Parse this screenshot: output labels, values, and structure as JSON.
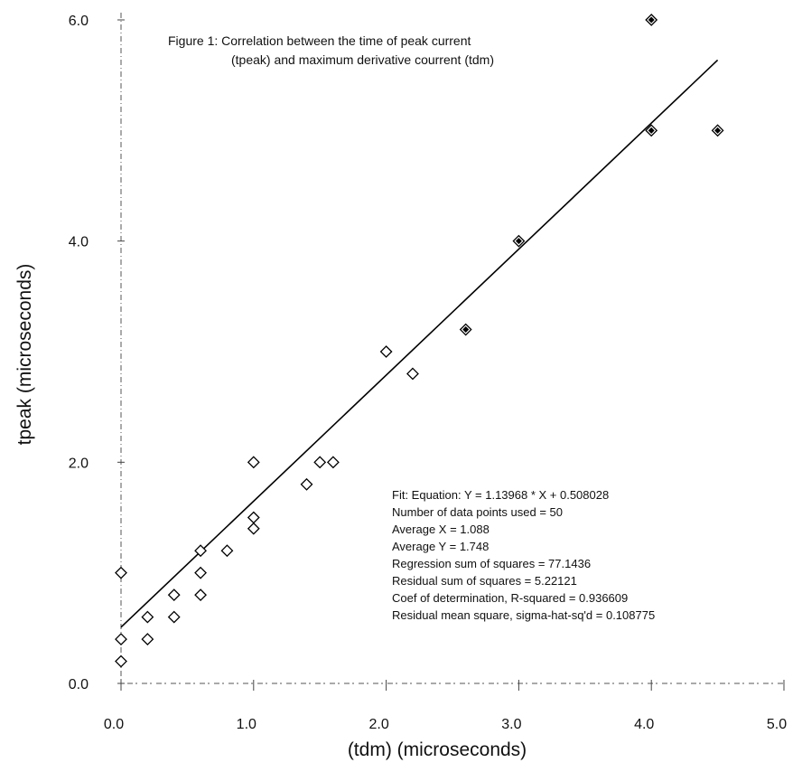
{
  "chart_data": {
    "type": "scatter",
    "title_lines": [
      "Figure 1: Correlation between the time of peak current",
      "(tpeak) and maximum derivative courrent (tdm)"
    ],
    "xlabel": "(tdm) (microseconds)",
    "ylabel": "tpeak (microseconds)",
    "xlim": [
      0,
      5
    ],
    "ylim": [
      0,
      6
    ],
    "x_ticks": [
      "0.0",
      "1.0",
      "2.0",
      "3.0",
      "4.0",
      "5.0"
    ],
    "y_ticks": [
      "0.0",
      "2.0",
      "4.0",
      "6.0"
    ],
    "points_open": [
      {
        "x": 0.0,
        "y": 0.2
      },
      {
        "x": 0.0,
        "y": 0.4
      },
      {
        "x": 0.0,
        "y": 1.0
      },
      {
        "x": 0.2,
        "y": 0.4
      },
      {
        "x": 0.2,
        "y": 0.6
      },
      {
        "x": 0.4,
        "y": 0.6
      },
      {
        "x": 0.4,
        "y": 0.8
      },
      {
        "x": 0.6,
        "y": 0.8
      },
      {
        "x": 0.6,
        "y": 1.0
      },
      {
        "x": 0.6,
        "y": 1.2
      },
      {
        "x": 0.8,
        "y": 1.2
      },
      {
        "x": 1.0,
        "y": 1.4
      },
      {
        "x": 1.0,
        "y": 1.5
      },
      {
        "x": 1.0,
        "y": 2.0
      },
      {
        "x": 1.4,
        "y": 1.8
      },
      {
        "x": 1.5,
        "y": 2.0
      },
      {
        "x": 1.6,
        "y": 2.0
      },
      {
        "x": 2.0,
        "y": 3.0
      },
      {
        "x": 2.2,
        "y": 2.8
      }
    ],
    "points_filled": [
      {
        "x": 2.6,
        "y": 3.2
      },
      {
        "x": 3.0,
        "y": 4.0
      },
      {
        "x": 4.0,
        "y": 5.0
      },
      {
        "x": 4.0,
        "y": 6.0
      },
      {
        "x": 4.5,
        "y": 5.0
      }
    ],
    "fit_line": {
      "slope": 1.13968,
      "intercept": 0.508028,
      "x_range": [
        0,
        4.5
      ]
    },
    "stats_lines": [
      "Fit: Equation: Y = 1.13968 * X + 0.508028",
      "Number of data points used = 50",
      "Average X = 1.088",
      "Average Y = 1.748",
      "Regression sum of squares = 77.1436",
      "Residual sum of squares = 5.22121",
      "Coef of determination, R-squared = 0.936609",
      "Residual mean square, sigma-hat-sq'd = 0.108775"
    ]
  }
}
